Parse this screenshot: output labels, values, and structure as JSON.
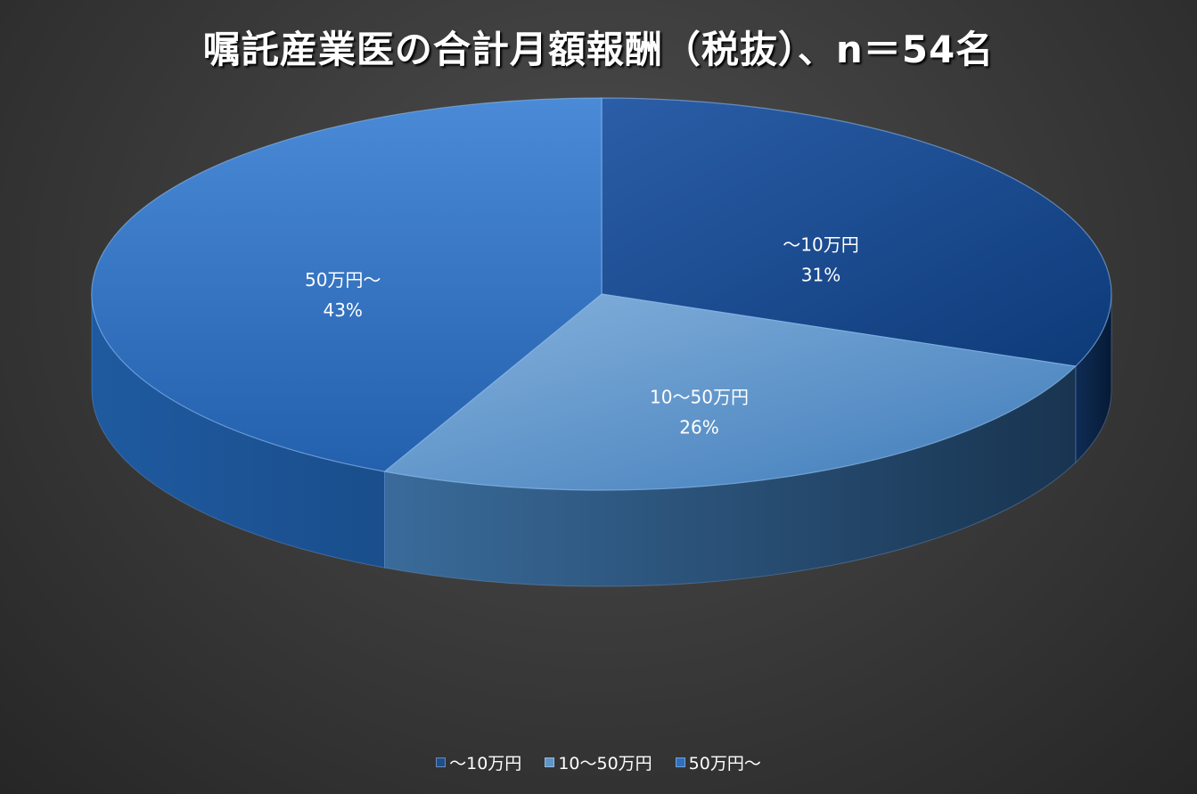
{
  "title": "嘱託産業医の合計月額報酬（税抜）、n＝54名",
  "chart_data": {
    "type": "pie",
    "title": "嘱託産業医の合計月額報酬（税抜）、n＝54名",
    "style": "3d",
    "legend_position": "bottom",
    "slices": [
      {
        "label": "〜10万円",
        "value": 31,
        "percent_label": "31%",
        "color": "#1f4e8c"
      },
      {
        "label": "10〜50万円",
        "value": 26,
        "percent_label": "26%",
        "color": "#5d95c9"
      },
      {
        "label": "50万円〜",
        "value": 43,
        "percent_label": "43%",
        "color": "#2e6fbf"
      }
    ]
  },
  "legend": [
    {
      "label": "〜10万円",
      "color": "#1f4e8c"
    },
    {
      "label": "10〜50万円",
      "color": "#5d95c9"
    },
    {
      "label": "50万円〜",
      "color": "#2e6fbf"
    }
  ]
}
